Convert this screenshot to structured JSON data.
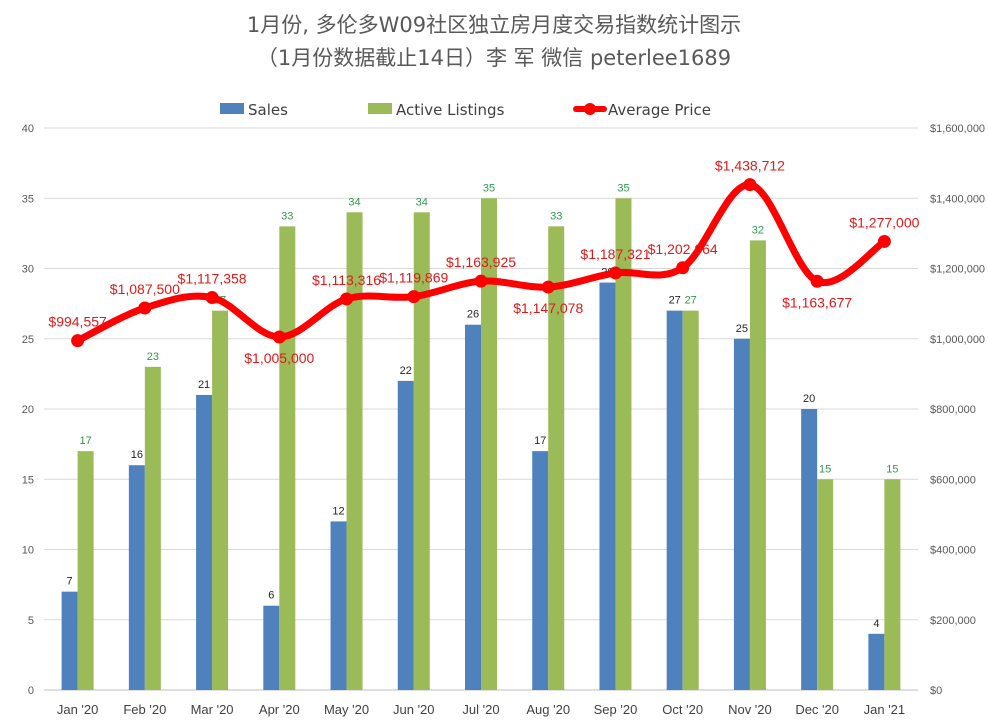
{
  "chart_data": {
    "type": "bar",
    "title": "1月份, 多伦多W09社区独立房月度交易指数统计图示",
    "subtitle": "（1月份数据截止14日）李 军  微信  peterlee1689",
    "categories": [
      "Jan '20",
      "Feb '20",
      "Mar '20",
      "Apr '20",
      "May '20",
      "Jun '20",
      "Jul '20",
      "Aug '20",
      "Sep '20",
      "Oct '20",
      "Nov '20",
      "Dec '20",
      "Jan '21"
    ],
    "series": [
      {
        "name": "Sales",
        "type": "bar",
        "axis": "left",
        "color": "#4f81bd",
        "label_color": "#262626",
        "values": [
          7,
          16,
          21,
          6,
          12,
          22,
          26,
          17,
          29,
          27,
          25,
          20,
          4
        ]
      },
      {
        "name": "Active Listings",
        "type": "bar",
        "axis": "left",
        "color": "#9bbb59",
        "label_color": "#2e9a4c",
        "values": [
          17,
          23,
          27,
          33,
          34,
          34,
          35,
          33,
          35,
          27,
          32,
          15,
          15
        ]
      },
      {
        "name": "Average Price",
        "type": "line",
        "axis": "right",
        "color": "#ff0000",
        "label_color": "#e0191a",
        "values": [
          994557,
          1087500,
          1117358,
          1005000,
          1113316,
          1119869,
          1163925,
          1147078,
          1187321,
          1202064,
          1438712,
          1163677,
          1277000
        ],
        "labels": [
          "$994,557",
          "$1,087,500",
          "$1,117,358",
          "$1,005,000",
          "$1,113,316",
          "$1,119,869",
          "$1,163,925",
          "$1,147,078",
          "$1,187,321",
          "$1,202,064",
          "$1,438,712",
          "$1,163,677",
          "$1,277,000"
        ]
      }
    ],
    "y_left": {
      "min": 0,
      "max": 40,
      "ticks": [
        "0",
        "5",
        "10",
        "15",
        "20",
        "25",
        "30",
        "35",
        "40"
      ]
    },
    "y_right": {
      "min": 0,
      "max": 1600000,
      "ticks": [
        "$0",
        "$200,000",
        "$400,000",
        "$600,000",
        "$800,000",
        "$1,000,000",
        "$1,200,000",
        "$1,400,000",
        "$1,600,000"
      ]
    },
    "grid": true,
    "legend_position": "top"
  }
}
